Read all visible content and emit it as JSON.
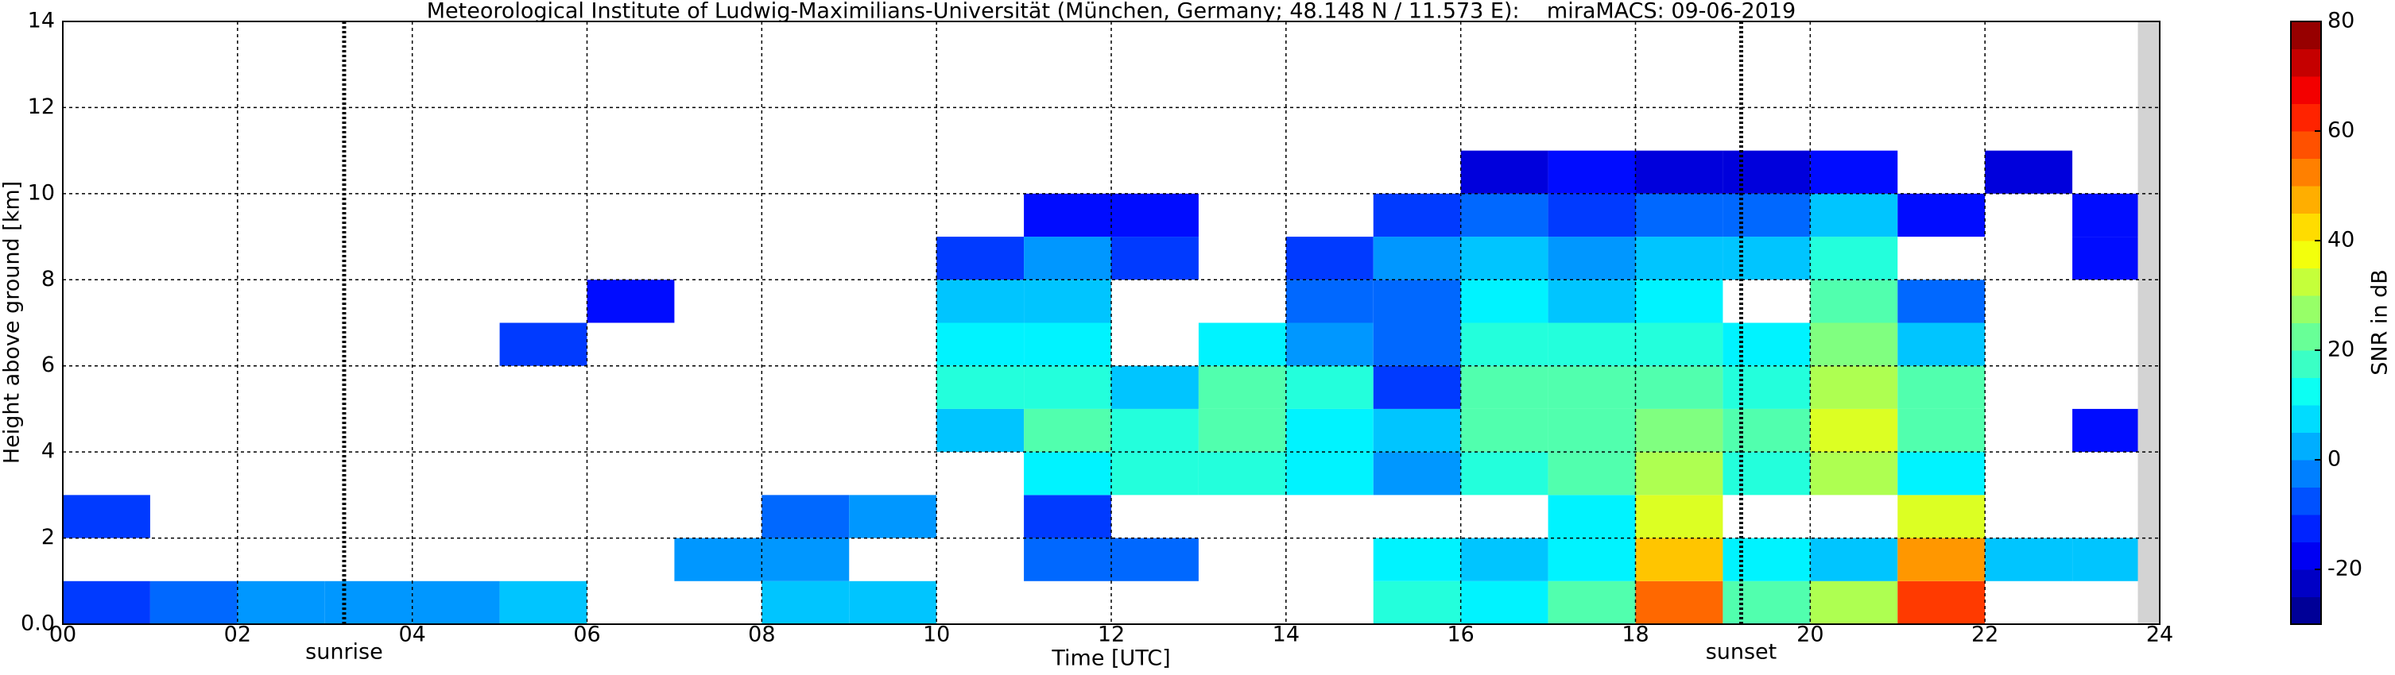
{
  "chart_data": {
    "type": "heatmap",
    "title": "Meteorological Institute of Ludwig-Maximilians-Universität (München, Germany; 48.148 N / 11.573 E):    miraMACS: 09-06-2019",
    "xlabel": "Time [UTC]",
    "ylabel": "Height above ground [km]",
    "colorbar_label": "SNR in dB",
    "x": [
      0,
      1,
      2,
      3,
      4,
      5,
      6,
      7,
      8,
      9,
      10,
      11,
      12,
      13,
      14,
      15,
      16,
      17,
      18,
      19,
      20,
      21,
      22,
      23,
      24
    ],
    "y": [
      0,
      1,
      2,
      3,
      4,
      5,
      6,
      7,
      8,
      9,
      10,
      11,
      12,
      13,
      14
    ],
    "z": [
      [
        -10,
        -5,
        0,
        0,
        0,
        5,
        null,
        null,
        5,
        5,
        null,
        null,
        null,
        null,
        null,
        15,
        10,
        20,
        55,
        20,
        30,
        60,
        null,
        null
      ],
      [
        null,
        null,
        null,
        null,
        null,
        null,
        null,
        0,
        0,
        null,
        null,
        -5,
        -5,
        null,
        null,
        10,
        5,
        10,
        45,
        10,
        5,
        50,
        5,
        5
      ],
      [
        -10,
        null,
        null,
        null,
        null,
        null,
        null,
        null,
        -5,
        0,
        null,
        -10,
        null,
        null,
        null,
        null,
        null,
        10,
        35,
        null,
        null,
        35,
        null,
        null
      ],
      [
        null,
        null,
        null,
        null,
        null,
        null,
        null,
        null,
        null,
        null,
        null,
        10,
        15,
        15,
        10,
        0,
        15,
        20,
        30,
        15,
        30,
        10,
        null,
        null
      ],
      [
        null,
        null,
        null,
        null,
        null,
        null,
        null,
        null,
        null,
        null,
        5,
        20,
        15,
        20,
        10,
        5,
        20,
        20,
        25,
        20,
        35,
        20,
        null,
        -15
      ],
      [
        null,
        null,
        null,
        null,
        null,
        null,
        null,
        null,
        null,
        null,
        15,
        15,
        5,
        20,
        15,
        -10,
        20,
        20,
        20,
        15,
        30,
        20,
        null,
        null
      ],
      [
        null,
        null,
        null,
        null,
        null,
        -10,
        null,
        null,
        null,
        null,
        10,
        10,
        null,
        10,
        0,
        -5,
        15,
        15,
        15,
        10,
        25,
        5,
        null,
        null
      ],
      [
        null,
        null,
        null,
        null,
        null,
        null,
        -15,
        null,
        null,
        null,
        5,
        5,
        null,
        null,
        -5,
        -5,
        10,
        5,
        10,
        null,
        20,
        -5,
        null,
        null
      ],
      [
        null,
        null,
        null,
        null,
        null,
        null,
        null,
        null,
        null,
        null,
        -10,
        0,
        -10,
        null,
        -10,
        0,
        5,
        0,
        5,
        5,
        15,
        null,
        null,
        -15
      ],
      [
        null,
        null,
        null,
        null,
        null,
        null,
        null,
        null,
        null,
        null,
        null,
        -15,
        -15,
        null,
        null,
        -10,
        -5,
        -10,
        -5,
        -5,
        5,
        -15,
        null,
        -15
      ],
      [
        null,
        null,
        null,
        null,
        null,
        null,
        null,
        null,
        null,
        null,
        null,
        null,
        null,
        null,
        null,
        null,
        -20,
        -15,
        -20,
        -20,
        -15,
        null,
        -20,
        null
      ],
      [
        null,
        null,
        null,
        null,
        null,
        null,
        null,
        null,
        null,
        null,
        null,
        null,
        null,
        null,
        null,
        null,
        null,
        null,
        null,
        null,
        null,
        null,
        null,
        null
      ],
      [
        null,
        null,
        null,
        null,
        null,
        null,
        null,
        null,
        null,
        null,
        null,
        null,
        null,
        null,
        null,
        null,
        null,
        null,
        null,
        null,
        null,
        null,
        null,
        null
      ],
      [
        null,
        null,
        null,
        null,
        null,
        null,
        null,
        null,
        null,
        null,
        null,
        null,
        null,
        null,
        null,
        null,
        null,
        null,
        null,
        null,
        null,
        null,
        null,
        null
      ]
    ],
    "xlim": [
      0,
      24
    ],
    "ylim": [
      0,
      14
    ],
    "clim": [
      -30,
      80
    ],
    "xticks": [
      {
        "value": 0,
        "label": "00"
      },
      {
        "value": 2,
        "label": "02"
      },
      {
        "value": 4,
        "label": "04"
      },
      {
        "value": 6,
        "label": "06"
      },
      {
        "value": 8,
        "label": "08"
      },
      10,
      12,
      14,
      16,
      18,
      20,
      22,
      24
    ],
    "yticks": [
      {
        "value": 0,
        "label": "0.0"
      },
      2,
      4,
      6,
      8,
      10,
      12,
      14
    ],
    "cticks": [
      -20,
      0,
      20,
      40,
      60,
      80
    ],
    "missing_x": [
      23.75,
      24
    ],
    "annotations": [
      {
        "x": 3.22,
        "label": "sunrise"
      },
      {
        "x": 19.21,
        "label": "sunset"
      }
    ],
    "grid": true,
    "colormap": "jet"
  }
}
